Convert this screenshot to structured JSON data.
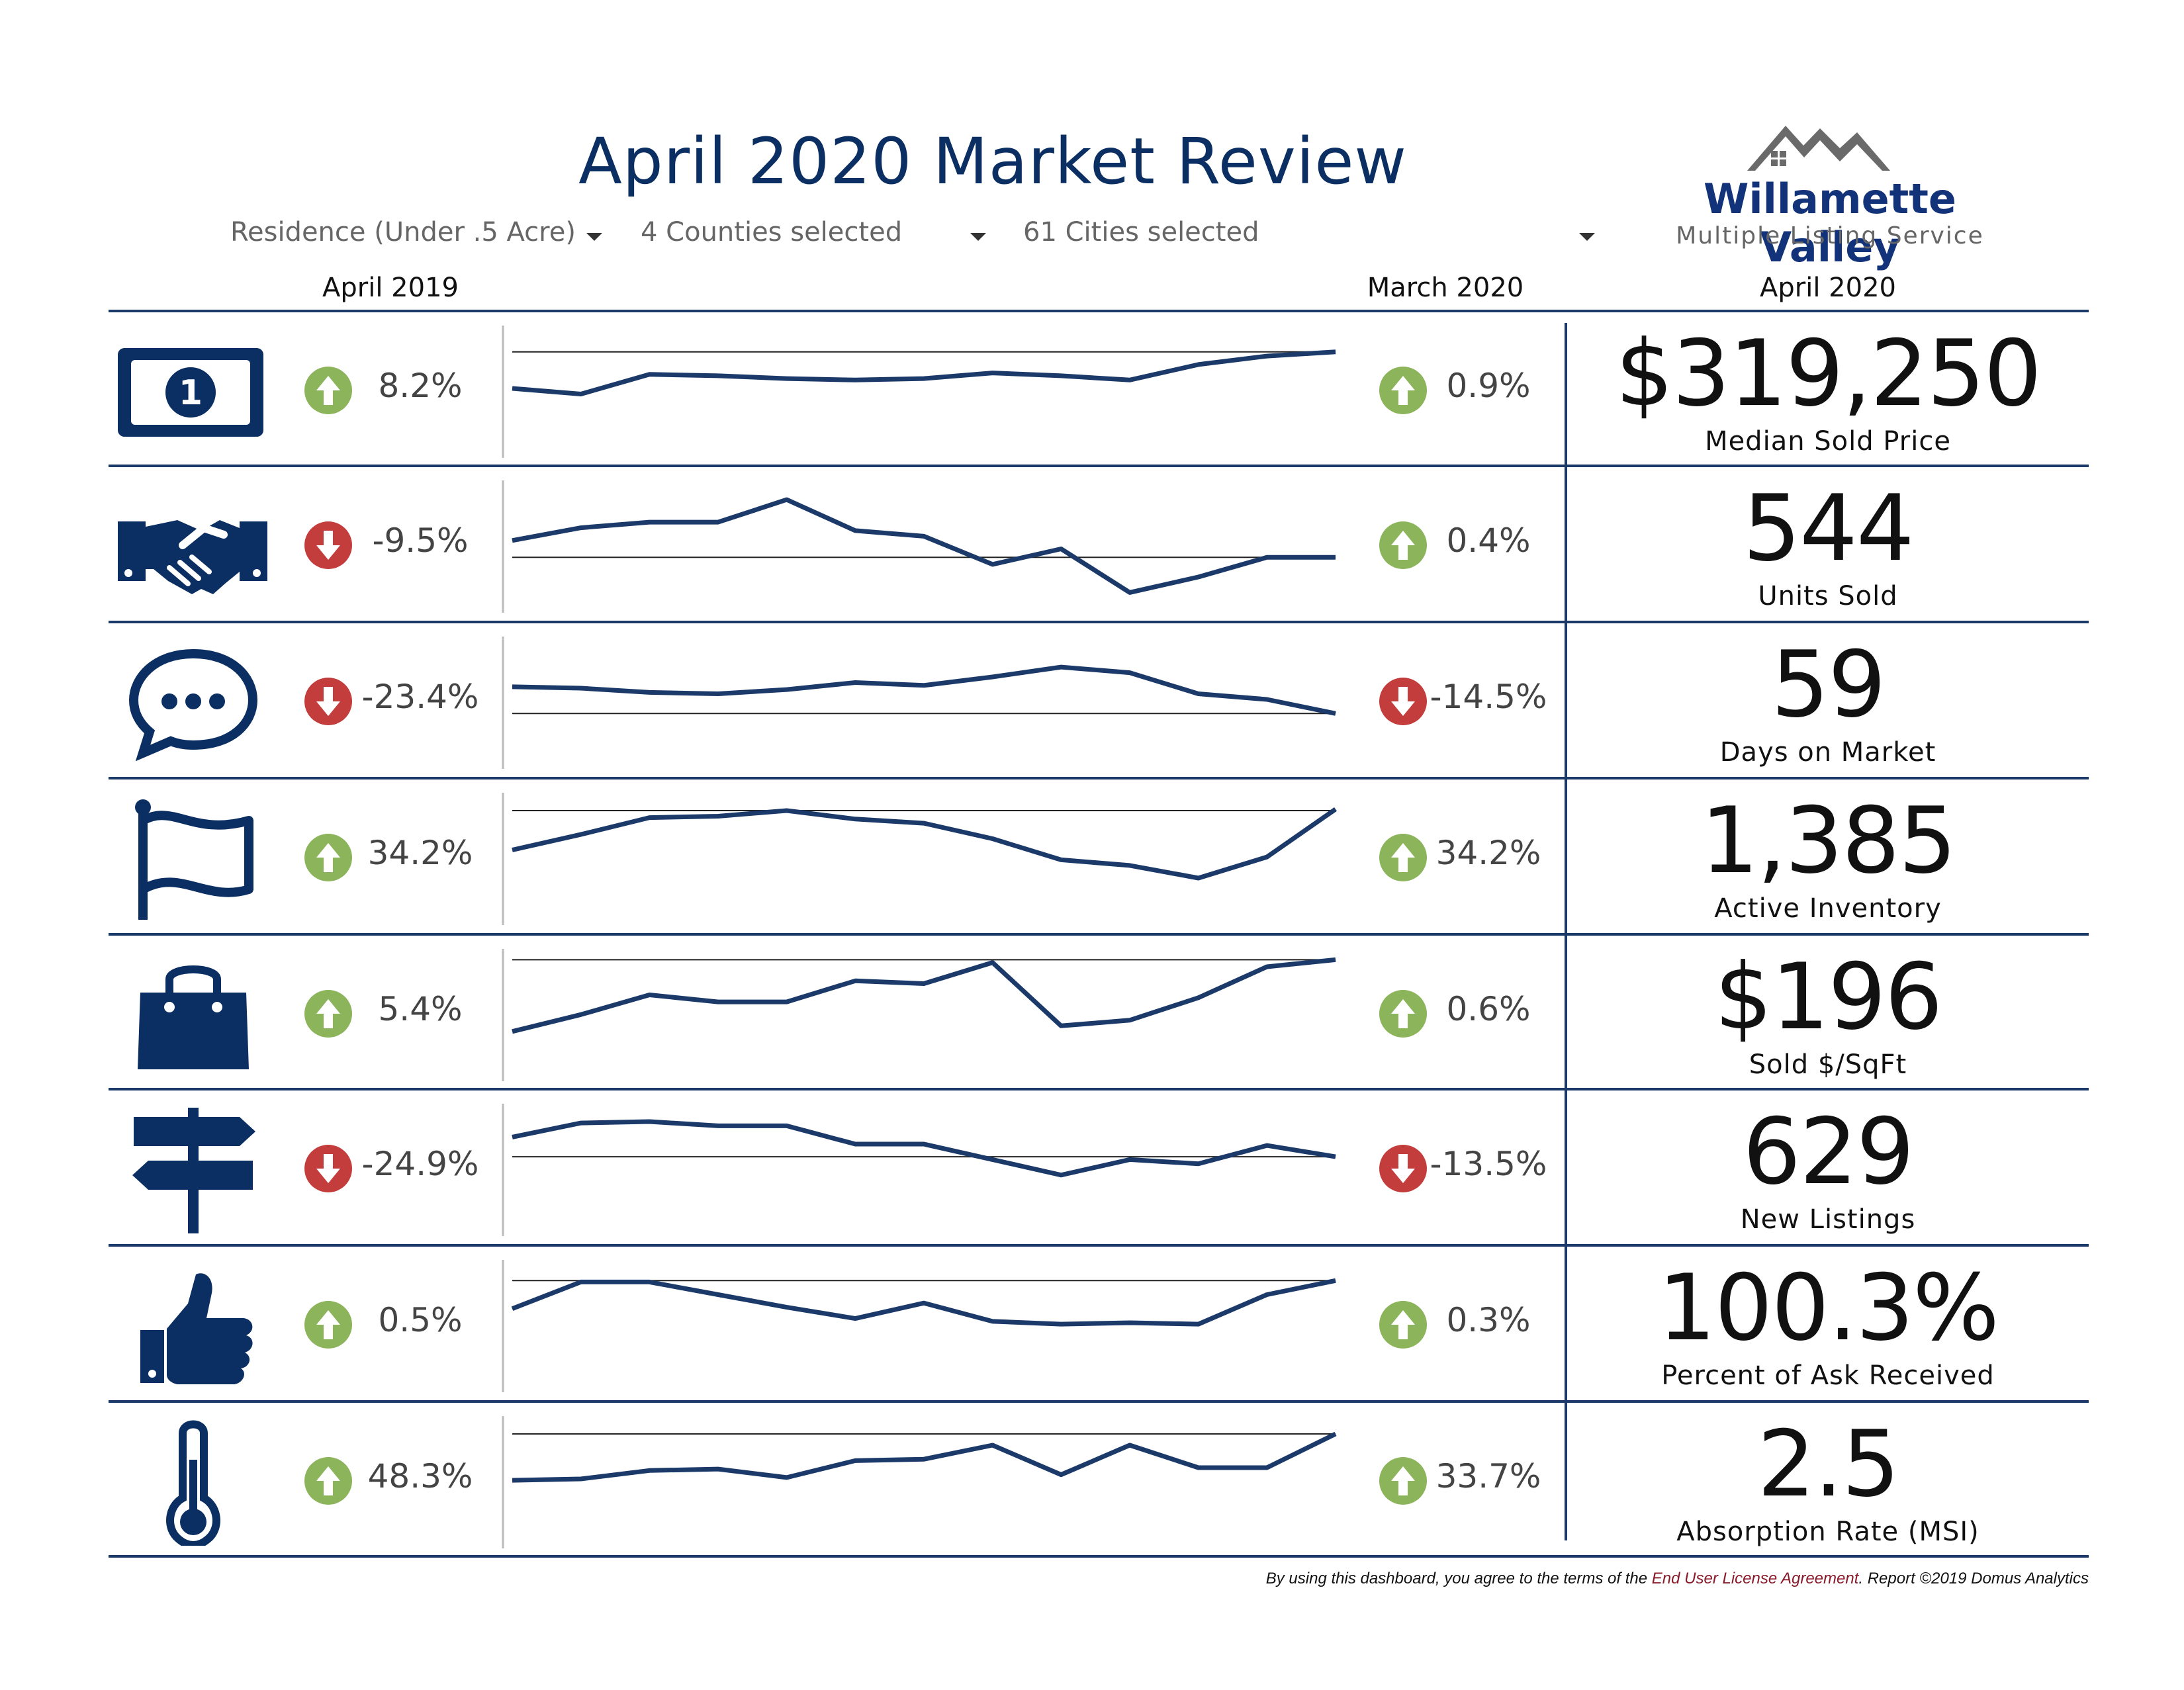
{
  "header": {
    "title": "April 2020 Market Review",
    "filters": [
      {
        "label": "Residence (Under .5 Acre)"
      },
      {
        "label": "4 Counties selected"
      },
      {
        "label": "61 Cities selected"
      }
    ],
    "columns": {
      "prior_year": "April 2019",
      "prior_month": "March 2020",
      "current": "April 2020"
    }
  },
  "logo": {
    "title": "Willamette Valley",
    "subtitle": "Multiple Listing Service"
  },
  "colors": {
    "navy": "#0b2f62",
    "up": "#8cb45a",
    "down": "#c43d3d",
    "line": "#1b3a6a"
  },
  "metrics": [
    {
      "icon": "dollar-bill-icon",
      "yoy": "8.2%",
      "yoy_dir": "up",
      "mom": "0.9%",
      "mom_dir": "up",
      "value": "$319,250",
      "label": "Median Sold Price",
      "trend": [
        40,
        36,
        50,
        49,
        47,
        46,
        47,
        51,
        49,
        46,
        57,
        63,
        66
      ],
      "ref": 66
    },
    {
      "icon": "handshake-icon",
      "yoy": "-9.5%",
      "yoy_dir": "down",
      "mom": "0.4%",
      "mom_dir": "up",
      "value": "544",
      "label": "Units Sold",
      "trend": [
        42,
        51,
        55,
        55,
        71,
        49,
        45,
        25,
        36,
        5,
        16,
        30,
        30
      ],
      "ref": 30
    },
    {
      "icon": "speech-bubble-icon",
      "yoy": "-23.4%",
      "yoy_dir": "down",
      "mom": "-14.5%",
      "mom_dir": "down",
      "value": "59",
      "label": "Days on Market",
      "trend": [
        49,
        48,
        45,
        44,
        47,
        52,
        50,
        56,
        63,
        59,
        44,
        40,
        30
      ],
      "ref": 30
    },
    {
      "icon": "flag-icon",
      "yoy": "34.2%",
      "yoy_dir": "up",
      "mom": "34.2%",
      "mom_dir": "up",
      "value": "1,385",
      "label": "Active Inventory",
      "trend": [
        44,
        55,
        67,
        68,
        72,
        66,
        63,
        52,
        37,
        33,
        24,
        39,
        73
      ],
      "ref": 72
    },
    {
      "icon": "shopping-bag-icon",
      "yoy": "5.4%",
      "yoy_dir": "up",
      "mom": "0.6%",
      "mom_dir": "up",
      "value": "$196",
      "label": "Sold $/SqFt",
      "trend": [
        26,
        38,
        52,
        47,
        47,
        62,
        60,
        75,
        30,
        34,
        50,
        72,
        77
      ],
      "ref": 77
    },
    {
      "icon": "signpost-icon",
      "yoy": "-24.9%",
      "yoy_dir": "down",
      "mom": "-13.5%",
      "mom_dir": "down",
      "value": "629",
      "label": "New Listings",
      "trend": [
        61,
        71,
        72,
        69,
        69,
        56,
        56,
        45,
        34,
        45,
        42,
        55,
        47
      ],
      "ref": 47
    },
    {
      "icon": "thumbs-up-icon",
      "yoy": "0.5%",
      "yoy_dir": "up",
      "mom": "0.3%",
      "mom_dir": "up",
      "value": "100.3%",
      "label": "Percent of Ask Received",
      "trend": [
        50,
        69,
        69,
        60,
        51,
        43,
        54,
        41,
        39,
        40,
        39,
        60,
        70
      ],
      "ref": 70
    },
    {
      "icon": "thermometer-icon",
      "yoy": "48.3%",
      "yoy_dir": "up",
      "mom": "33.7%",
      "mom_dir": "up",
      "value": "2.5",
      "label": "Absorption Rate (MSI)",
      "trend": [
        39,
        40,
        46,
        47,
        41,
        53,
        54,
        64,
        43,
        64,
        48,
        48,
        72
      ],
      "ref": 72
    }
  ],
  "footer": {
    "pre": "By using this dashboard, you agree to the terms of the ",
    "link": "End User License Agreement",
    "post": ".  Report ©2019 Domus Analytics"
  }
}
